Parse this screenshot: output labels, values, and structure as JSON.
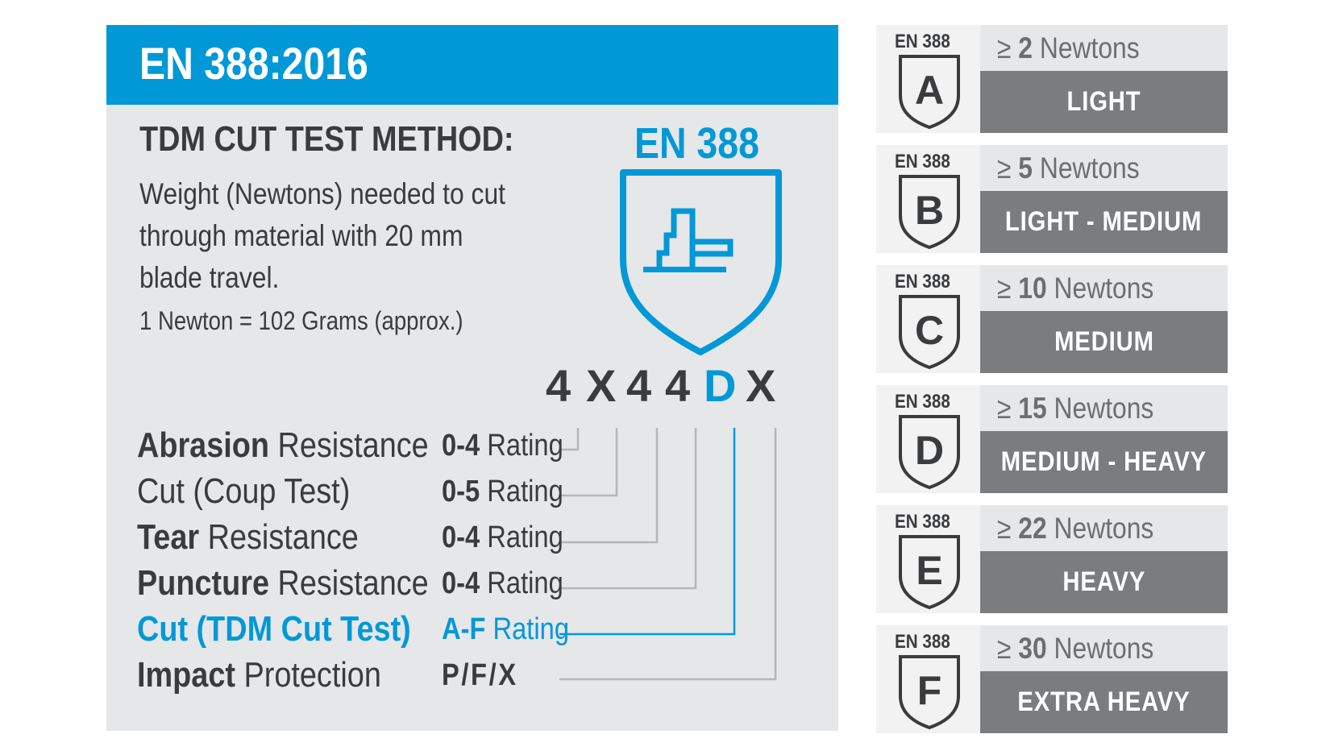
{
  "header": {
    "title": "EN 388:2016"
  },
  "method": {
    "heading": "TDM CUT TEST METHOD:",
    "description_lines": [
      "Weight (Newtons) needed to cut",
      "through material with 20 mm",
      "blade travel."
    ],
    "note": "1 Newton = 102 Grams (approx.)"
  },
  "pictogram": {
    "standard": "EN 388",
    "icon": "en388-shield-blade-icon"
  },
  "code": {
    "characters": [
      "4",
      "X",
      "4",
      "4",
      "D",
      "X"
    ],
    "highlight_index": 4
  },
  "ratings": [
    {
      "bold": "Abrasion",
      "rest": " Resistance",
      "range": "0-4",
      "unit": " Rating"
    },
    {
      "bold": "",
      "rest": "Cut (Coup Test)",
      "range": "0-5",
      "unit": " Rating"
    },
    {
      "bold": "Tear",
      "rest": " Resistance",
      "range": "0-4",
      "unit": " Rating"
    },
    {
      "bold": "Puncture",
      "rest": " Resistance",
      "range": "0-4",
      "unit": " Rating"
    },
    {
      "bold": "Cut (TDM Cut Test)",
      "rest": "",
      "range": "A-F",
      "unit": " Rating"
    },
    {
      "bold": "Impact",
      "rest": " Protection",
      "range": "P/F/X",
      "unit": ""
    }
  ],
  "cut_levels": [
    {
      "standard": "EN 388",
      "letter": "A",
      "symbol": "≥",
      "newtons": "2",
      "unit": " Newtons",
      "level": "LIGHT"
    },
    {
      "standard": "EN 388",
      "letter": "B",
      "symbol": "≥",
      "newtons": "5",
      "unit": " Newtons",
      "level": "LIGHT - MEDIUM"
    },
    {
      "standard": "EN 388",
      "letter": "C",
      "symbol": "≥",
      "newtons": "10",
      "unit": " Newtons",
      "level": "MEDIUM"
    },
    {
      "standard": "EN 388",
      "letter": "D",
      "symbol": "≥",
      "newtons": "15",
      "unit": " Newtons",
      "level": "MEDIUM - HEAVY"
    },
    {
      "standard": "EN 388",
      "letter": "E",
      "symbol": "≥",
      "newtons": "22",
      "unit": " Newtons",
      "level": "HEAVY"
    },
    {
      "standard": "EN 388",
      "letter": "F",
      "symbol": "≥",
      "newtons": "30",
      "unit": " Newtons",
      "level": "EXTRA HEAVY"
    }
  ],
  "colors": {
    "accent_blue": "#0098d7",
    "panel_gray": "#e6e7e9",
    "level_gray": "#7a7c7e",
    "text_dark": "#3a3b3d"
  }
}
